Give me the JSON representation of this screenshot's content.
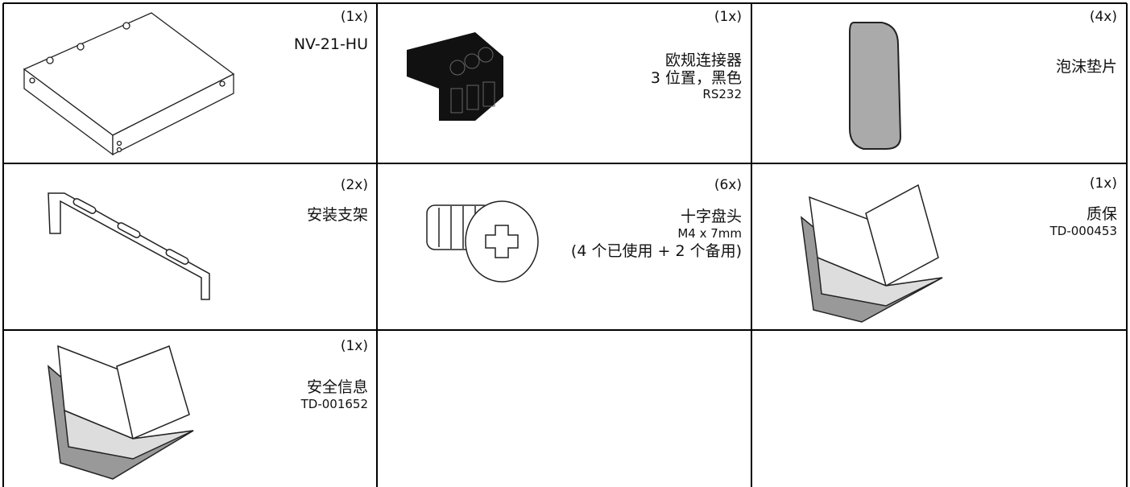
{
  "items": [
    {
      "quantity": "(1x)",
      "lines": [
        "NV-21-HU"
      ]
    },
    {
      "quantity": "(1x)",
      "lines": [
        "欧规连接器",
        "3 位置，黑色",
        "RS232"
      ]
    },
    {
      "quantity": "(4x)",
      "lines": [
        "泡沫垫片"
      ]
    },
    {
      "quantity": "(2x)",
      "lines": [
        "安装支架"
      ]
    },
    {
      "quantity": "(6x)",
      "lines": [
        "十字盘头",
        "M4 x 7mm",
        "(4 个已使用 + 2 个备用)"
      ]
    },
    {
      "quantity": "(1x)",
      "lines": [
        "质保",
        "TD-000453"
      ]
    },
    {
      "quantity": "(1x)",
      "lines": [
        "安全信息",
        "TD-001652"
      ]
    }
  ]
}
